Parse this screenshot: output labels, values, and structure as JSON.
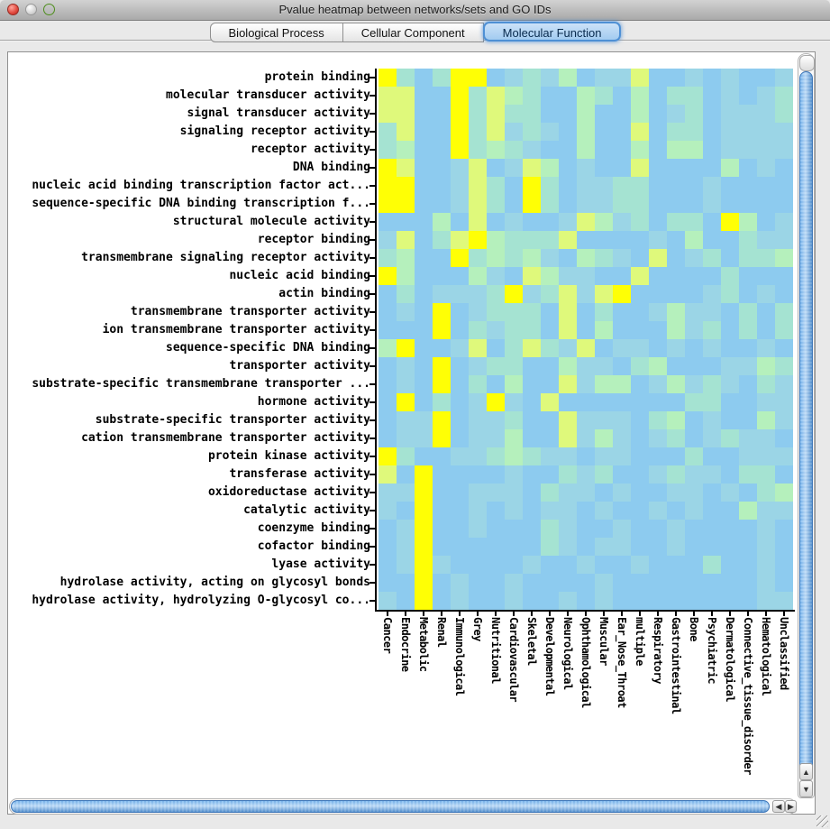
{
  "window": {
    "title": "Pvalue heatmap between networks/sets and GO IDs"
  },
  "tabs": [
    {
      "label": "Biological Process",
      "selected": false
    },
    {
      "label": "Cellular Component",
      "selected": false
    },
    {
      "label": "Molecular Function",
      "selected": true
    }
  ],
  "scrollbars": {
    "vertical": {
      "up_arrow": "▲",
      "down_arrow": "▼"
    },
    "horizontal": {
      "left_arrow": "◀",
      "right_arrow": "▶"
    }
  },
  "chart_data": {
    "type": "heatmap",
    "title": "Pvalue heatmap between networks/sets and GO IDs",
    "rows": [
      "protein binding",
      "molecular transducer activity",
      "signal transducer activity",
      "signaling receptor activity",
      "receptor activity",
      "DNA binding",
      "nucleic acid binding transcription factor act...",
      "sequence-specific DNA binding transcription f...",
      "structural molecule activity",
      "receptor binding",
      "transmembrane signaling receptor activity",
      "nucleic acid binding",
      "actin binding",
      "transmembrane transporter activity",
      "ion transmembrane transporter activity",
      "sequence-specific DNA binding",
      "transporter activity",
      "substrate-specific transmembrane transporter ...",
      "hormone activity",
      "substrate-specific transporter activity",
      "cation transmembrane transporter activity",
      "protein kinase activity",
      "transferase activity",
      "oxidoreductase activity",
      "catalytic activity",
      "coenzyme binding",
      "cofactor binding",
      "lyase activity",
      "hydrolase activity, acting on glycosyl bonds",
      "hydrolase activity, hydrolyzing O-glycosyl co..."
    ],
    "columns": [
      "Cancer",
      "Endocrine",
      "Metabolic",
      "Renal",
      "Immunological",
      "Grey",
      "Nutritional",
      "Cardiovascular",
      "Skeletal",
      "Developmental",
      "Neurological",
      "Ophthamological",
      "Muscular",
      "Ear_Nose_Throat",
      "multiple",
      "Respiratory",
      "Gastrointestinal",
      "Bone",
      "Psychiatric",
      "Dermatological",
      "Connective_tissue_disorder",
      "Hematological",
      "Unclassified"
    ],
    "palette": {
      "Y": "#FFFF05",
      "G": "#DFF97B",
      "g": "#B5F0BC",
      "t": "#A5E3D2",
      "c": "#9BD5E6",
      "b": "#8DCBEF"
    },
    "cells": [
      "YtbtYYbctcgbccGbbcbcbbc",
      "GGbbYtGgtbbgtbgbttbcbct",
      "GGbbYtGttbbgbbgbctbccct",
      "tGbbYtGctcbgbbGbttbcccc",
      "tgbbYtgtcbbgbbgbggbcccc",
      "YGbbcGbcGgbcbbGbbbbgbcb",
      "YYbbcGtbYtbccttbbbcbbbb",
      "YYbbcGtbYtbccttbbbcbbbb",
      "bbbgbGbcbbcGgctbttbYgbc",
      "cGbtGYgtttGbbbbcbgbbtcc",
      "tgbbYtgtgcbgtcbGbctbttg",
      "YgbbbgcbGgccbbGbbbbtbbb",
      "btbccctYctGcGYbbbbctbcb",
      "bcbYbctttbGbtbbcgccbtbt",
      "bbbYbtcttbGbgbbbgctbtbt",
      "gYbbcGbtGtcGbccbcbcbbcb",
      "bcbYbcttbbgccbtgbbbccgt",
      "bcbYbtbgbbGcggbcgctcbtc",
      "bYbtbcYcbGbbbbbbbttbbcc",
      "bccYbcctbbGcccbtgbcbbgc",
      "bccYbccgbbGcgcbctbctccb",
      "Ytbbcctgtccbccbbbtbbccc",
      "GbYbbbbcbbtctbbctccbttb",
      "ccYbbcccbtccbcbbccbcbtg",
      "cbYbbcbcbccbcbbcbcbbgcc",
      "bcYbbcbbbtcbbcbbcbbbbcb",
      "bcYbbbbbbtcbccbbcbbbbcb",
      "bcYcbbbbcbbcbbcbbbtbbcb",
      "bbYbcbbcbbbbcbbbbbbbbcb",
      "cbYbcbbcbbcbcbbbbbbbbcc"
    ]
  }
}
